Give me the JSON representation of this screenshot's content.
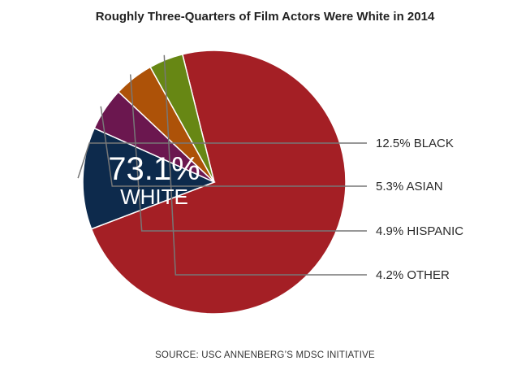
{
  "chart_data": {
    "type": "pie",
    "title": "Roughly Three-Quarters of Film Actors Were White in 2014",
    "slices": [
      {
        "label": "WHITE",
        "value": 73.1,
        "display": "73.1%",
        "color": "#a41f25"
      },
      {
        "label": "BLACK",
        "value": 12.5,
        "display": "12.5% BLACK",
        "color": "#0d2a4c"
      },
      {
        "label": "ASIAN",
        "value": 5.3,
        "display": "5.3% ASIAN",
        "color": "#6b174f"
      },
      {
        "label": "HISPANIC",
        "value": 4.9,
        "display": "4.9% HISPANIC",
        "color": "#ad5208"
      },
      {
        "label": "OTHER",
        "value": 4.2,
        "display": "4.2% OTHER",
        "color": "#678714"
      }
    ],
    "source": "SOURCE: USC ANNENBERG’S MDSC INITIATIVE"
  }
}
